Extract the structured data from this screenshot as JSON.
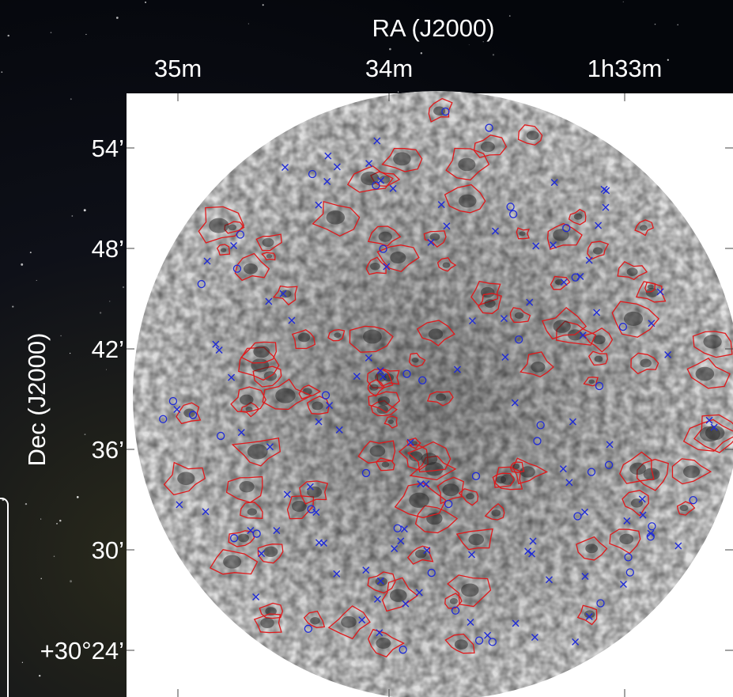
{
  "figure": {
    "x_axis": {
      "label": "RA (J2000)",
      "ticks": [
        "35m",
        "34m",
        "1h33m"
      ]
    },
    "y_axis": {
      "label": "Dec (J2000)",
      "ticks": [
        "54’",
        "48’",
        "42’",
        "36’",
        "30’",
        "+30°24’"
      ]
    }
  }
}
